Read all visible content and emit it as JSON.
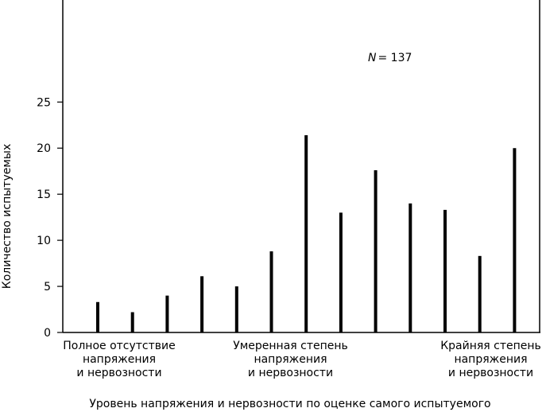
{
  "chart_data": {
    "type": "bar",
    "annotation_label": "N",
    "annotation_value": "= 137",
    "ylabel": "Количество испытуемых",
    "xlabel": "Уровень напряжения и нервозности по оценке самого испытуемого",
    "ylim": [
      0,
      25
    ],
    "yticks": [
      "0",
      "5",
      "10",
      "15",
      "20",
      "25"
    ],
    "x_group_labels": [
      {
        "line1": "Полное отсутствие",
        "line2": "напряжения",
        "line3": "и нервозности"
      },
      {
        "line1": "Умеренная степень",
        "line2": "напряжения",
        "line3": "и нервозности"
      },
      {
        "line1": "Крайняя степень",
        "line2": "напряжения",
        "line3": "и нервозности"
      }
    ],
    "values": [
      3.3,
      2.2,
      4.0,
      6.1,
      5.0,
      8.8,
      21.4,
      13.0,
      17.6,
      14.0,
      13.3,
      8.3,
      20.0
    ],
    "bar_color": "#000000",
    "grid": false
  }
}
